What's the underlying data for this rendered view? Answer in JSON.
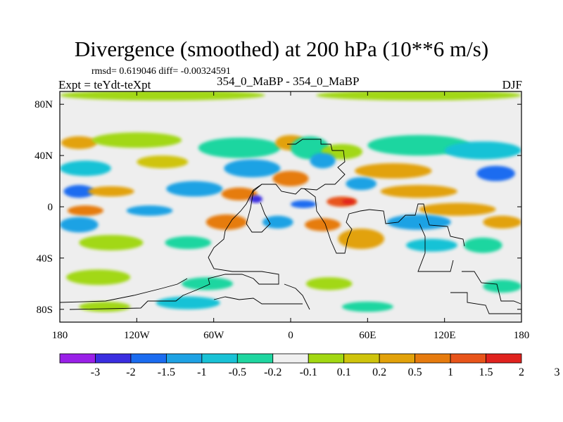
{
  "chart_data": {
    "type": "heatmap",
    "title": "Divergence (smoothed) at 200 hPa (10**6 m/s)",
    "stats_text": "rmsd= 0.619046 diff= -0.00324591",
    "left_label": "Expt = teYdt-teXpt",
    "center_label": "354_0_MaBP - 354_0_MaBP",
    "right_label": "DJF",
    "xlim": [
      -180,
      180
    ],
    "ylim": [
      -90,
      90
    ],
    "x_ticks": [
      {
        "value": -180,
        "label": "180"
      },
      {
        "value": -120,
        "label": "120W"
      },
      {
        "value": -60,
        "label": "60W"
      },
      {
        "value": 0,
        "label": "0"
      },
      {
        "value": 60,
        "label": "60E"
      },
      {
        "value": 120,
        "label": "120E"
      },
      {
        "value": 180,
        "label": "180"
      }
    ],
    "y_ticks": [
      {
        "value": 80,
        "label": "80N"
      },
      {
        "value": 40,
        "label": "40N"
      },
      {
        "value": 0,
        "label": "0"
      },
      {
        "value": -40,
        "label": "40S"
      },
      {
        "value": -80,
        "label": "80S"
      }
    ],
    "colorbar": {
      "colors": [
        "#9a20e8",
        "#3a2ee0",
        "#1b6cf0",
        "#1ea2e4",
        "#19c2d6",
        "#1fd6a0",
        "#f0f0f0",
        "#a2d812",
        "#cfc40c",
        "#e2a20a",
        "#e67b0e",
        "#e8541a",
        "#e0221e"
      ],
      "levels": [
        "-3",
        "-2",
        "-1.5",
        "-1",
        "-0.5",
        "-0.2",
        "-0.1",
        "0.1",
        "0.2",
        "0.5",
        "1",
        "1.5",
        "2",
        "3"
      ]
    },
    "regions": [
      {
        "level": 7,
        "color": "#a2d812",
        "lon": -100,
        "lat": 87,
        "rx": 80,
        "ry": 4
      },
      {
        "level": 7,
        "color": "#a2d812",
        "lon": 100,
        "lat": 87,
        "rx": 80,
        "ry": 4
      },
      {
        "level": 9,
        "color": "#e2a20a",
        "lon": -165,
        "lat": 50,
        "rx": 14,
        "ry": 5
      },
      {
        "level": 7,
        "color": "#a2d812",
        "lon": -120,
        "lat": 52,
        "rx": 35,
        "ry": 6
      },
      {
        "level": 5,
        "color": "#1fd6a0",
        "lon": -40,
        "lat": 46,
        "rx": 32,
        "ry": 8
      },
      {
        "level": 9,
        "color": "#e2a20a",
        "lon": 0,
        "lat": 50,
        "rx": 12,
        "ry": 6
      },
      {
        "level": 5,
        "color": "#1fd6a0",
        "lon": 15,
        "lat": 46,
        "rx": 15,
        "ry": 9
      },
      {
        "level": 7,
        "color": "#a2d812",
        "lon": 40,
        "lat": 43,
        "rx": 16,
        "ry": 6
      },
      {
        "level": 5,
        "color": "#1fd6a0",
        "lon": 100,
        "lat": 48,
        "rx": 40,
        "ry": 8
      },
      {
        "level": 4,
        "color": "#19c2d6",
        "lon": 150,
        "lat": 44,
        "rx": 30,
        "ry": 7
      },
      {
        "level": 4,
        "color": "#19c2d6",
        "lon": -160,
        "lat": 30,
        "rx": 20,
        "ry": 6
      },
      {
        "level": 8,
        "color": "#cfc40c",
        "lon": -100,
        "lat": 35,
        "rx": 20,
        "ry": 5
      },
      {
        "level": 3,
        "color": "#1ea2e4",
        "lon": -30,
        "lat": 30,
        "rx": 22,
        "ry": 7
      },
      {
        "level": 3,
        "color": "#1ea2e4",
        "lon": 25,
        "lat": 36,
        "rx": 10,
        "ry": 6
      },
      {
        "level": 10,
        "color": "#e67b0e",
        "lon": 0,
        "lat": 22,
        "rx": 14,
        "ry": 6
      },
      {
        "level": 9,
        "color": "#e2a20a",
        "lon": 80,
        "lat": 28,
        "rx": 30,
        "ry": 6
      },
      {
        "level": 2,
        "color": "#1b6cf0",
        "lon": 160,
        "lat": 26,
        "rx": 15,
        "ry": 6
      },
      {
        "level": 2,
        "color": "#1b6cf0",
        "lon": -165,
        "lat": 12,
        "rx": 12,
        "ry": 5
      },
      {
        "level": 9,
        "color": "#e2a20a",
        "lon": -140,
        "lat": 12,
        "rx": 18,
        "ry": 4
      },
      {
        "level": 3,
        "color": "#1ea2e4",
        "lon": -75,
        "lat": 14,
        "rx": 22,
        "ry": 6
      },
      {
        "level": 10,
        "color": "#e67b0e",
        "lon": -40,
        "lat": 10,
        "rx": 14,
        "ry": 5
      },
      {
        "level": 3,
        "color": "#1ea2e4",
        "lon": 55,
        "lat": 18,
        "rx": 12,
        "ry": 5
      },
      {
        "level": 9,
        "color": "#e2a20a",
        "lon": 100,
        "lat": 12,
        "rx": 30,
        "ry": 5
      },
      {
        "level": 1,
        "color": "#3a2ee0",
        "lon": -27,
        "lat": 6,
        "rx": 5,
        "ry": 3
      },
      {
        "level": 2,
        "color": "#1b6cf0",
        "lon": 10,
        "lat": 2,
        "rx": 10,
        "ry": 3
      },
      {
        "level": 11,
        "color": "#e8541a",
        "lon": 40,
        "lat": 4,
        "rx": 12,
        "ry": 4
      },
      {
        "level": 12,
        "color": "#e0221e",
        "lon": 45,
        "lat": 4,
        "rx": 5,
        "ry": 2
      },
      {
        "level": 10,
        "color": "#e67b0e",
        "lon": -160,
        "lat": -3,
        "rx": 14,
        "ry": 4
      },
      {
        "level": 3,
        "color": "#1ea2e4",
        "lon": -110,
        "lat": -3,
        "rx": 18,
        "ry": 4
      },
      {
        "level": 9,
        "color": "#e2a20a",
        "lon": 130,
        "lat": -2,
        "rx": 30,
        "ry": 5
      },
      {
        "level": 3,
        "color": "#1ea2e4",
        "lon": -165,
        "lat": -14,
        "rx": 15,
        "ry": 6
      },
      {
        "level": 10,
        "color": "#e67b0e",
        "lon": -50,
        "lat": -12,
        "rx": 16,
        "ry": 6
      },
      {
        "level": 3,
        "color": "#1ea2e4",
        "lon": -10,
        "lat": -12,
        "rx": 12,
        "ry": 5
      },
      {
        "level": 10,
        "color": "#e67b0e",
        "lon": 25,
        "lat": -14,
        "rx": 14,
        "ry": 5
      },
      {
        "level": 3,
        "color": "#1ea2e4",
        "lon": 100,
        "lat": -12,
        "rx": 25,
        "ry": 6
      },
      {
        "level": 9,
        "color": "#e2a20a",
        "lon": 165,
        "lat": -12,
        "rx": 15,
        "ry": 5
      },
      {
        "level": 7,
        "color": "#a2d812",
        "lon": -140,
        "lat": -28,
        "rx": 25,
        "ry": 6
      },
      {
        "level": 5,
        "color": "#1fd6a0",
        "lon": -80,
        "lat": -28,
        "rx": 18,
        "ry": 5
      },
      {
        "level": 9,
        "color": "#e2a20a",
        "lon": 55,
        "lat": -25,
        "rx": 18,
        "ry": 8
      },
      {
        "level": 4,
        "color": "#19c2d6",
        "lon": 110,
        "lat": -30,
        "rx": 20,
        "ry": 5
      },
      {
        "level": 5,
        "color": "#1fd6a0",
        "lon": 150,
        "lat": -30,
        "rx": 15,
        "ry": 6
      },
      {
        "level": 7,
        "color": "#a2d812",
        "lon": -150,
        "lat": -55,
        "rx": 25,
        "ry": 6
      },
      {
        "level": 5,
        "color": "#1fd6a0",
        "lon": -65,
        "lat": -60,
        "rx": 20,
        "ry": 5
      },
      {
        "level": 7,
        "color": "#a2d812",
        "lon": 30,
        "lat": -60,
        "rx": 18,
        "ry": 5
      },
      {
        "level": 5,
        "color": "#1fd6a0",
        "lon": 165,
        "lat": -62,
        "rx": 15,
        "ry": 5
      },
      {
        "level": 7,
        "color": "#a2d812",
        "lon": -145,
        "lat": -78,
        "rx": 20,
        "ry": 4
      },
      {
        "level": 4,
        "color": "#19c2d6",
        "lon": -80,
        "lat": -75,
        "rx": 25,
        "ry": 5
      },
      {
        "level": 5,
        "color": "#1fd6a0",
        "lon": 60,
        "lat": -78,
        "rx": 20,
        "ry": 4
      }
    ]
  }
}
